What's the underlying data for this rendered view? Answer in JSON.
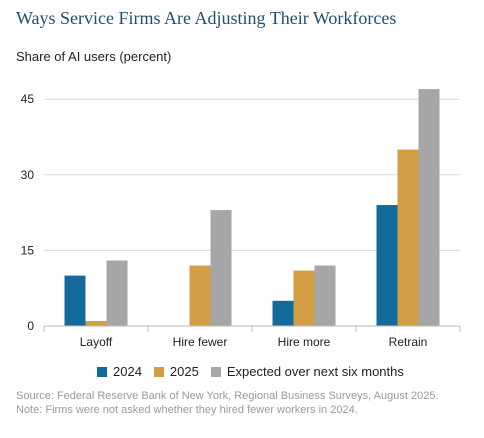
{
  "title": "Ways Service Firms Are Adjusting Their Workforces",
  "ylabel": "Share of AI users (percent)",
  "source": "Source: Federal Reserve Bank of New York, Regional Business Surveys, August 2025.",
  "note": "Note: Firms were not asked whether they hired fewer workers in 2024.",
  "colors": {
    "series_2024": "#136b9c",
    "series_2025": "#d49e45",
    "series_expected": "#a6a6a9",
    "grid": "#d9d9d9",
    "axis": "#b9b9b9",
    "title": "#1f4f6f"
  },
  "chart_data": {
    "type": "bar",
    "title": "Ways Service Firms Are Adjusting Their Workforces",
    "xlabel": "",
    "ylabel": "Share of AI users (percent)",
    "categories": [
      "Layoff",
      "Hire fewer",
      "Hire more",
      "Retrain"
    ],
    "ylim": [
      0,
      50
    ],
    "yticks": [
      0,
      15,
      30,
      45
    ],
    "grid": true,
    "legend_position": "bottom",
    "series": [
      {
        "name": "2024",
        "values": [
          10,
          null,
          5,
          24
        ]
      },
      {
        "name": "2025",
        "values": [
          1,
          12,
          11,
          35
        ]
      },
      {
        "name": "Expected over next six months",
        "values": [
          13,
          23,
          12,
          47
        ]
      }
    ]
  }
}
